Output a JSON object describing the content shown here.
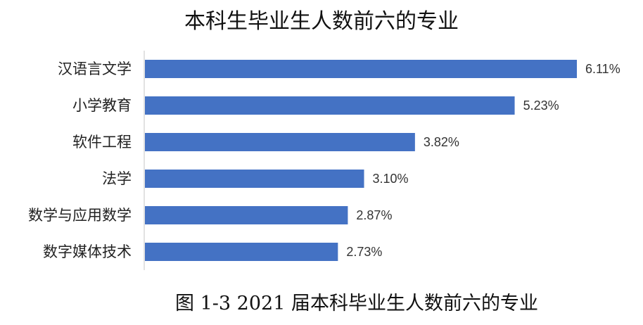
{
  "chart_data": {
    "type": "bar",
    "orientation": "horizontal",
    "title": "本科生毕业生人数前六的专业",
    "categories": [
      "汉语言文学",
      "小学教育",
      "软件工程",
      "法学",
      "数学与应用数学",
      "数字媒体技术"
    ],
    "values": [
      6.11,
      5.23,
      3.82,
      3.1,
      2.87,
      2.73
    ],
    "data_labels": [
      "6.11%",
      "5.23%",
      "3.82%",
      "3.10%",
      "2.87%",
      "2.73%"
    ],
    "unit": "%",
    "xlim": [
      0,
      6.11
    ],
    "grid": false,
    "legend": "none",
    "bar_color": "#4472C4"
  },
  "caption": "图 1-3 2021 届本科毕业生人数前六的专业"
}
